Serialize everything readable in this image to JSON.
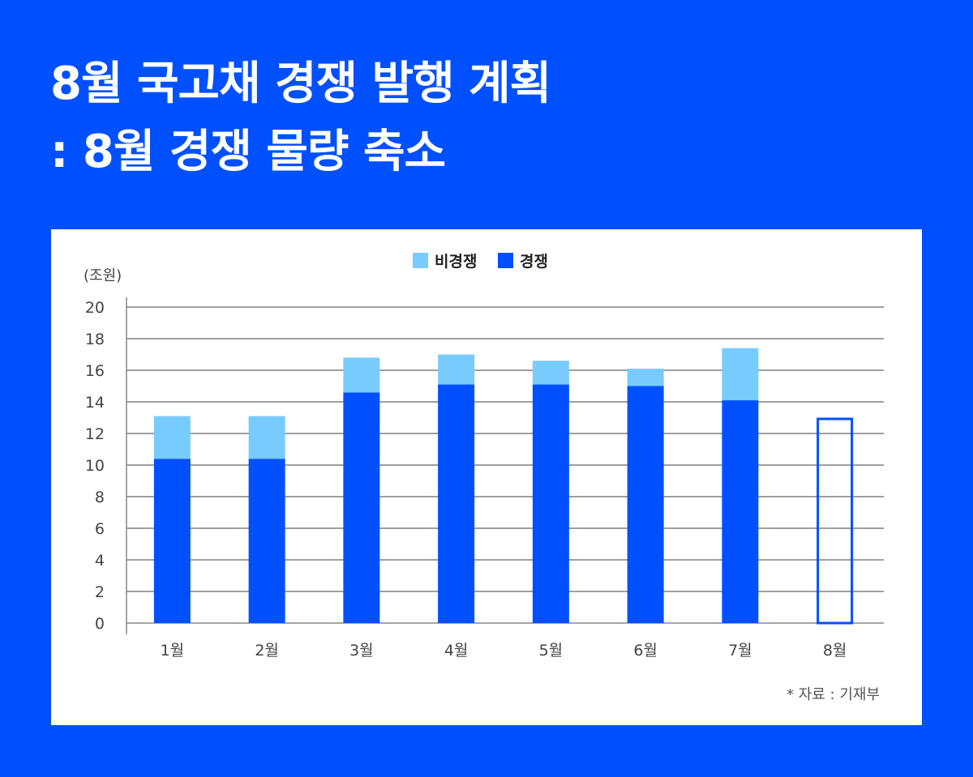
{
  "title_line1": "8월 국고채 경쟁 발행 계획",
  "title_line2": ": 8월 경쟁 물량 축소",
  "source": "* 자료 : 기재부",
  "chart_data": {
    "type": "bar",
    "stacked": true,
    "ylabel": "(조원)",
    "ylim": [
      0,
      20
    ],
    "yticks": [
      0,
      2,
      4,
      6,
      8,
      10,
      12,
      14,
      16,
      18,
      20
    ],
    "grid": true,
    "legend_position": "top-center",
    "categories": [
      "1월",
      "2월",
      "3월",
      "4월",
      "5월",
      "6월",
      "7월",
      "8월"
    ],
    "series": [
      {
        "name": "경쟁",
        "color": "#0050ff",
        "values": [
          10.4,
          10.4,
          14.6,
          15.1,
          15.1,
          15.0,
          14.1,
          13.0
        ]
      },
      {
        "name": "비경쟁",
        "color": "#78cbff",
        "values": [
          2.7,
          2.7,
          2.2,
          1.9,
          1.5,
          1.1,
          3.3,
          null
        ]
      }
    ],
    "outlined_categories": [
      "8월"
    ],
    "legend_order": [
      "비경쟁",
      "경쟁"
    ]
  }
}
